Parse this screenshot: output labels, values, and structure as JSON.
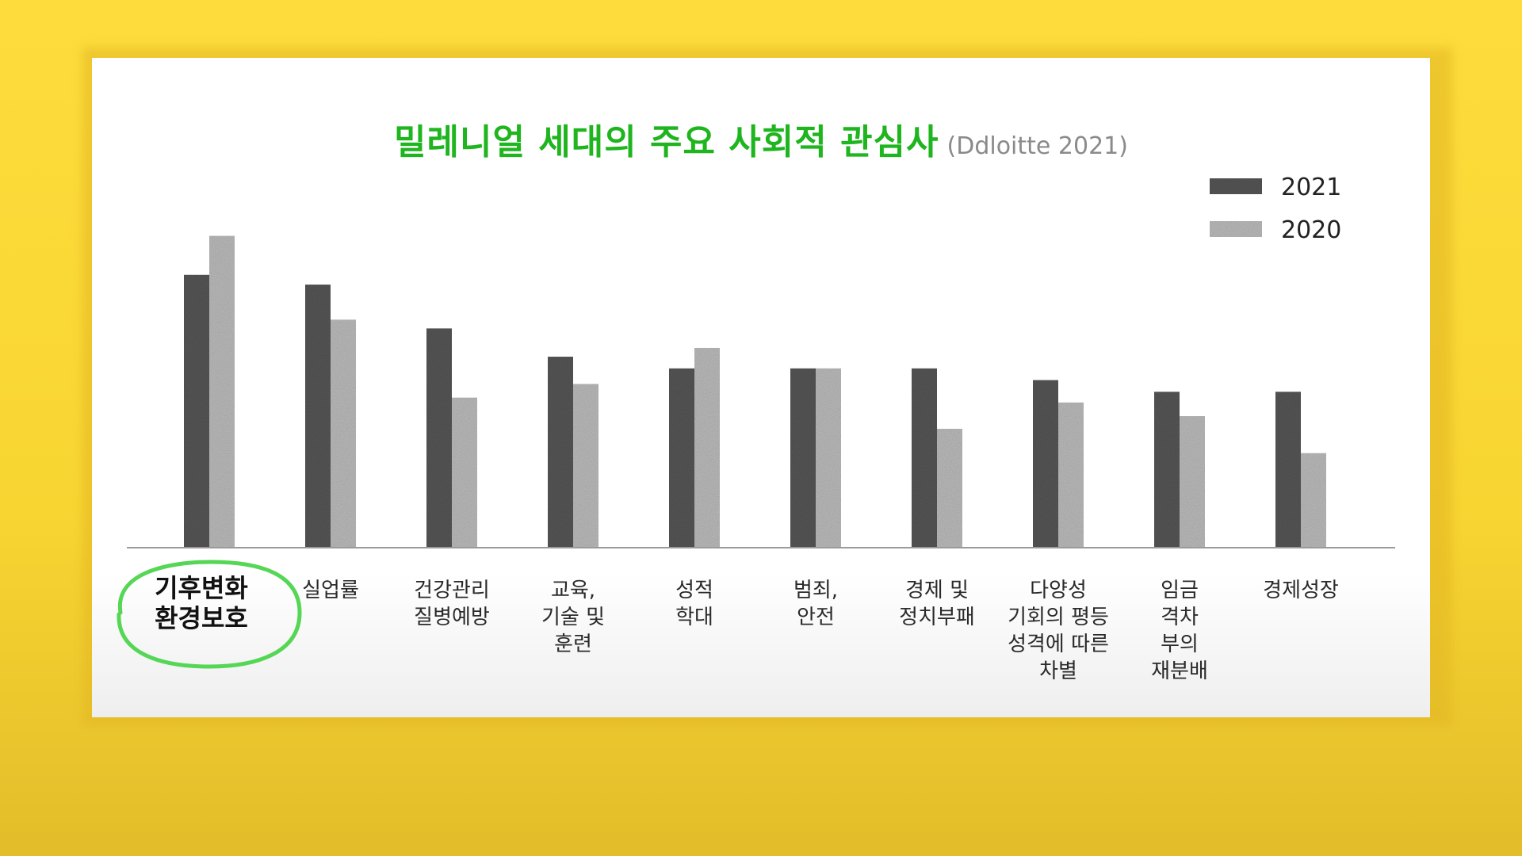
{
  "title": {
    "main": "밀레니얼 세대의 주요 사회적 관심사",
    "sub": "(Ddloitte 2021)"
  },
  "colors": {
    "background": "#fddc3c",
    "series_2021": "#555555",
    "series_2020": "#b9b9b9",
    "title": "#1fb51f",
    "highlight_circle": "#55d655"
  },
  "chart_data": {
    "type": "bar",
    "categories": [
      [
        "기후변화",
        "환경보호"
      ],
      [
        "실업률"
      ],
      [
        "건강관리",
        "질병예방"
      ],
      [
        "교육,",
        "기술 및",
        "훈련"
      ],
      [
        "성적",
        "학대"
      ],
      [
        "범죄,",
        "안전"
      ],
      [
        "경제 및",
        "정치부패"
      ],
      [
        "다양성",
        "기회의 평등",
        "성격에 따른",
        "차별"
      ],
      [
        "임금",
        "격차",
        "부의",
        "재분배"
      ],
      [
        "경제성장"
      ]
    ],
    "series": [
      {
        "name": "2021",
        "values": [
          28,
          27,
          22.5,
          19.6,
          18.4,
          18.4,
          18.4,
          17.2,
          16,
          16
        ]
      },
      {
        "name": "2020",
        "values": [
          32,
          23.4,
          15.4,
          16.8,
          20.5,
          18.4,
          12.2,
          14.9,
          13.5,
          9.7
        ]
      }
    ],
    "ylim": [
      0,
      34
    ],
    "grid": false,
    "legend": "top-right",
    "highlight_category_index": 0
  }
}
